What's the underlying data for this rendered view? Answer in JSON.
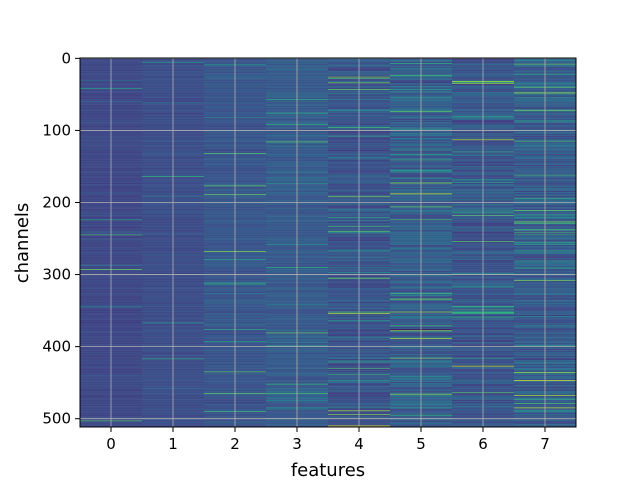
{
  "chart_data": {
    "type": "heatmap",
    "title": "",
    "xlabel": "features",
    "ylabel": "channels",
    "x_categories": [
      "0",
      "1",
      "2",
      "3",
      "4",
      "5",
      "6",
      "7"
    ],
    "y_ticks": [
      0,
      100,
      200,
      300,
      400,
      500
    ],
    "rows": 512,
    "ylim": [
      512,
      0
    ],
    "y_inverted": true,
    "grid": true,
    "colormap": "viridis",
    "columns": [
      {
        "feature": "0",
        "mean": 0.22,
        "spread": 0.05
      },
      {
        "feature": "1",
        "mean": 0.24,
        "spread": 0.06
      },
      {
        "feature": "2",
        "mean": 0.27,
        "spread": 0.09
      },
      {
        "feature": "3",
        "mean": 0.29,
        "spread": 0.11
      },
      {
        "feature": "4",
        "mean": 0.26,
        "spread": 0.16
      },
      {
        "feature": "5",
        "mean": 0.3,
        "spread": 0.2
      },
      {
        "feature": "6",
        "mean": 0.27,
        "spread": 0.19
      },
      {
        "feature": "7",
        "mean": 0.29,
        "spread": 0.21
      }
    ],
    "highlights": [
      {
        "feature": "4",
        "channel": 510,
        "value": 0.95
      },
      {
        "feature": "5",
        "channel": 188,
        "value": 0.92
      },
      {
        "feature": "5",
        "channel": 376,
        "value": 0.02
      },
      {
        "feature": "6",
        "channel": 113,
        "value": 0.9
      },
      {
        "feature": "6",
        "channel": 427,
        "value": 0.92
      },
      {
        "feature": "7",
        "channel": 48,
        "value": 0.88
      },
      {
        "feature": "7",
        "channel": 436,
        "value": 0.85
      },
      {
        "feature": "7",
        "channel": 485,
        "value": 0.9
      }
    ]
  },
  "colors": {
    "background": "#ffffff",
    "grid": "#b0b0b0",
    "axis": "#000000"
  }
}
